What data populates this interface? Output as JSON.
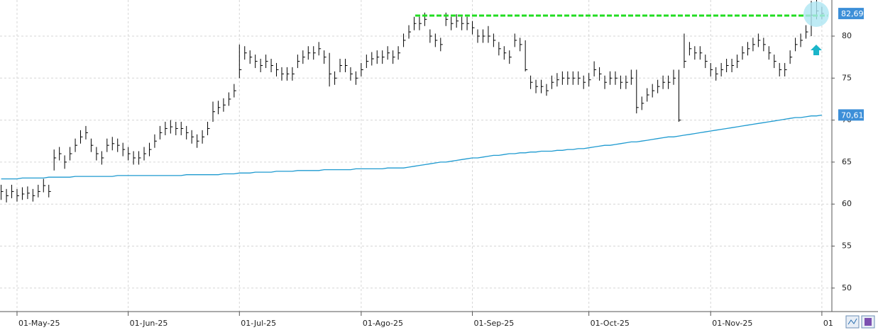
{
  "chart_data": {
    "type": "ohlc",
    "categories": [
      null,
      null,
      null,
      "01-May-25",
      null,
      null,
      null,
      null,
      null,
      null,
      null,
      null,
      null,
      null,
      null,
      null,
      null,
      null,
      null,
      null,
      null,
      null,
      null,
      null,
      "01-Jun-25",
      null,
      null,
      null,
      null,
      null,
      null,
      null,
      null,
      null,
      null,
      null,
      null,
      null,
      null,
      null,
      null,
      null,
      null,
      null,
      null,
      "01-Jul-25",
      null,
      null,
      null,
      null,
      null,
      null,
      null,
      null,
      null,
      null,
      null,
      null,
      null,
      null,
      null,
      null,
      null,
      null,
      null,
      null,
      null,
      null,
      "01-Ago-25",
      null,
      null,
      null,
      null,
      null,
      null,
      null,
      null,
      null,
      null,
      null,
      null,
      null,
      null,
      null,
      null,
      null,
      null,
      null,
      null,
      "01-Sep-25",
      null,
      null,
      null,
      null,
      null,
      null,
      null,
      null,
      null,
      null,
      null,
      null,
      null,
      null,
      null,
      null,
      null,
      null,
      null,
      null,
      null,
      "01-Oct-25",
      null,
      null,
      null,
      null,
      null,
      null,
      null,
      null,
      null,
      null,
      null,
      null,
      null,
      null,
      null,
      null,
      null,
      null,
      null,
      null,
      null,
      null,
      "01-Nov-25",
      null,
      null,
      null,
      null,
      null,
      null,
      null,
      null,
      null,
      null,
      null,
      null,
      null,
      null,
      null,
      null,
      null,
      null,
      null,
      null,
      "01"
    ],
    "high": [
      62.3,
      61.8,
      62.3,
      61.8,
      62.0,
      62.1,
      61.8,
      62.3,
      63.0,
      62.3,
      66.5,
      66.8,
      65.8,
      66.8,
      67.8,
      68.8,
      69.3,
      67.8,
      66.8,
      66.3,
      67.8,
      68.0,
      67.8,
      67.3,
      66.8,
      66.3,
      66.3,
      66.8,
      67.3,
      68.3,
      69.3,
      69.8,
      70.0,
      69.8,
      69.8,
      69.3,
      68.8,
      68.3,
      68.8,
      69.8,
      72.2,
      72.3,
      72.6,
      73.3,
      74.3,
      79.0,
      78.8,
      78.3,
      77.8,
      77.3,
      77.8,
      77.3,
      76.8,
      76.3,
      76.3,
      76.3,
      77.8,
      78.3,
      78.8,
      78.8,
      79.3,
      78.3,
      78.0,
      75.8,
      77.3,
      77.3,
      76.3,
      75.8,
      76.8,
      77.8,
      78.1,
      78.3,
      78.3,
      78.8,
      78.3,
      78.8,
      80.3,
      81.3,
      82.3,
      82.3,
      82.8,
      80.8,
      80.3,
      79.8,
      82.8,
      82.3,
      82.6,
      82.3,
      82.3,
      81.8,
      80.8,
      80.8,
      81.2,
      80.3,
      79.3,
      78.8,
      78.3,
      80.3,
      79.8,
      79.5,
      75.3,
      74.8,
      74.8,
      74.3,
      75.3,
      75.6,
      75.8,
      75.8,
      75.8,
      75.8,
      75.3,
      75.6,
      77.0,
      76.3,
      75.3,
      75.8,
      75.8,
      75.3,
      75.3,
      76.0,
      76.0,
      72.8,
      73.8,
      74.3,
      74.8,
      75.3,
      75.3,
      76.0,
      76.0,
      80.3,
      79.3,
      78.8,
      78.8,
      77.8,
      76.8,
      76.3,
      76.8,
      77.3,
      77.3,
      77.8,
      78.8,
      79.3,
      79.8,
      80.3,
      79.8,
      78.8,
      77.8,
      76.8,
      76.8,
      78.3,
      79.8,
      80.3,
      81.3,
      84.2,
      84.3,
      83.5
    ],
    "low": [
      60.5,
      60.2,
      60.7,
      60.3,
      60.5,
      60.6,
      60.3,
      60.8,
      61.4,
      60.8,
      64.0,
      65.2,
      64.2,
      65.2,
      66.2,
      67.2,
      67.7,
      66.2,
      65.2,
      64.7,
      66.2,
      66.4,
      66.2,
      65.7,
      65.2,
      64.7,
      64.7,
      65.2,
      65.7,
      66.7,
      67.7,
      68.2,
      68.4,
      68.2,
      68.2,
      67.7,
      67.2,
      66.7,
      67.2,
      68.2,
      69.8,
      70.7,
      71.0,
      71.7,
      72.7,
      75.0,
      77.2,
      76.7,
      76.2,
      75.7,
      76.2,
      75.7,
      75.2,
      74.7,
      74.7,
      74.7,
      76.2,
      76.7,
      77.2,
      77.2,
      77.7,
      76.7,
      74.0,
      74.2,
      75.7,
      75.7,
      74.7,
      74.2,
      75.2,
      76.2,
      76.5,
      76.7,
      76.7,
      77.2,
      76.7,
      77.2,
      78.7,
      79.7,
      80.7,
      80.7,
      81.2,
      79.2,
      78.7,
      78.2,
      81.2,
      80.7,
      81.0,
      80.7,
      80.7,
      80.2,
      79.2,
      79.2,
      79.2,
      78.7,
      77.7,
      77.2,
      76.7,
      78.7,
      78.2,
      75.8,
      73.7,
      73.2,
      73.2,
      72.9,
      73.7,
      74.0,
      74.2,
      74.2,
      74.2,
      74.2,
      73.7,
      74.0,
      75.2,
      74.7,
      73.7,
      74.2,
      74.2,
      73.7,
      73.7,
      74.2,
      70.8,
      71.2,
      72.2,
      72.7,
      73.2,
      73.7,
      73.7,
      74.2,
      69.8,
      76.2,
      77.7,
      77.2,
      77.2,
      76.2,
      75.2,
      74.7,
      75.2,
      75.7,
      75.7,
      76.2,
      77.2,
      77.7,
      78.2,
      78.7,
      78.2,
      77.2,
      76.2,
      75.2,
      75.2,
      76.7,
      78.2,
      78.7,
      79.7,
      80.0,
      82.0,
      82.0
    ],
    "close": [
      61.5,
      61.0,
      61.5,
      61.0,
      61.2,
      61.3,
      61.0,
      61.5,
      62.2,
      61.5,
      65.5,
      66.0,
      65.0,
      66.0,
      67.0,
      68.0,
      68.5,
      67.0,
      66.0,
      65.5,
      67.0,
      67.2,
      67.0,
      66.5,
      66.0,
      65.5,
      65.5,
      66.0,
      66.5,
      67.5,
      68.5,
      69.0,
      69.2,
      69.0,
      69.0,
      68.5,
      68.0,
      67.5,
      68.0,
      69.0,
      71.0,
      71.5,
      71.8,
      72.5,
      73.5,
      76.0,
      78.0,
      77.5,
      77.0,
      76.5,
      77.0,
      76.5,
      76.0,
      75.5,
      75.5,
      75.5,
      77.0,
      77.5,
      78.0,
      78.0,
      78.5,
      77.5,
      75.5,
      75.0,
      76.5,
      76.5,
      75.5,
      75.0,
      76.0,
      77.0,
      77.3,
      77.5,
      77.5,
      78.0,
      77.5,
      78.0,
      79.5,
      80.5,
      81.5,
      81.5,
      82.0,
      80.0,
      79.5,
      79.0,
      82.0,
      81.5,
      81.8,
      81.5,
      81.5,
      81.0,
      80.0,
      80.0,
      80.0,
      79.5,
      78.5,
      78.0,
      77.5,
      79.5,
      79.0,
      76.0,
      74.5,
      74.0,
      74.0,
      73.5,
      74.5,
      74.8,
      75.0,
      75.0,
      75.0,
      75.0,
      74.5,
      74.8,
      76.0,
      75.5,
      74.5,
      75.0,
      75.0,
      74.5,
      74.5,
      75.0,
      71.5,
      72.0,
      73.0,
      73.5,
      74.0,
      74.5,
      74.5,
      75.0,
      70.0,
      77.0,
      78.5,
      78.0,
      78.0,
      77.0,
      76.0,
      75.5,
      76.0,
      76.5,
      76.5,
      77.0,
      78.0,
      78.5,
      79.0,
      79.5,
      79.0,
      78.0,
      77.0,
      76.0,
      76.0,
      77.5,
      79.0,
      79.5,
      80.5,
      82.5,
      83.0,
      82.7
    ],
    "color": "#000000",
    "moving_average": {
      "color": "#1e9ad0",
      "values": [
        63.0,
        63.0,
        63.0,
        63.0,
        63.1,
        63.1,
        63.1,
        63.1,
        63.1,
        63.2,
        63.2,
        63.2,
        63.2,
        63.2,
        63.3,
        63.3,
        63.3,
        63.3,
        63.3,
        63.3,
        63.3,
        63.3,
        63.4,
        63.4,
        63.4,
        63.4,
        63.4,
        63.4,
        63.4,
        63.4,
        63.4,
        63.4,
        63.4,
        63.4,
        63.4,
        63.5,
        63.5,
        63.5,
        63.5,
        63.5,
        63.5,
        63.5,
        63.6,
        63.6,
        63.6,
        63.7,
        63.7,
        63.7,
        63.8,
        63.8,
        63.8,
        63.8,
        63.9,
        63.9,
        63.9,
        63.9,
        64.0,
        64.0,
        64.0,
        64.0,
        64.0,
        64.1,
        64.1,
        64.1,
        64.1,
        64.1,
        64.1,
        64.2,
        64.2,
        64.2,
        64.2,
        64.2,
        64.2,
        64.3,
        64.3,
        64.3,
        64.3,
        64.4,
        64.5,
        64.6,
        64.7,
        64.8,
        64.9,
        65.0,
        65.0,
        65.1,
        65.2,
        65.3,
        65.4,
        65.5,
        65.5,
        65.6,
        65.7,
        65.8,
        65.8,
        65.9,
        66.0,
        66.0,
        66.1,
        66.1,
        66.2,
        66.2,
        66.3,
        66.3,
        66.3,
        66.4,
        66.4,
        66.5,
        66.5,
        66.6,
        66.6,
        66.7,
        66.8,
        66.9,
        67.0,
        67.0,
        67.1,
        67.2,
        67.3,
        67.4,
        67.4,
        67.5,
        67.6,
        67.7,
        67.8,
        67.9,
        68.0,
        68.0,
        68.1,
        68.2,
        68.3,
        68.4,
        68.5,
        68.6,
        68.7,
        68.8,
        68.9,
        69.0,
        69.1,
        69.2,
        69.3,
        69.4,
        69.5,
        69.6,
        69.7,
        69.8,
        69.9,
        70.0,
        70.1,
        70.2,
        70.3,
        70.3,
        70.4,
        70.5,
        70.5,
        70.6
      ]
    },
    "resistance": {
      "value": 82.45,
      "color": "#22dd22"
    },
    "price_labels": [
      {
        "value": 82.69,
        "label": "82,69",
        "color": "#3d8fd8"
      },
      {
        "value": 70.61,
        "label": "70,61",
        "color": "#3d8fd8"
      }
    ],
    "ylim": [
      47.2,
      84.3
    ],
    "yticks": [
      50,
      55,
      60,
      65,
      70,
      75,
      80
    ],
    "grid": true
  }
}
